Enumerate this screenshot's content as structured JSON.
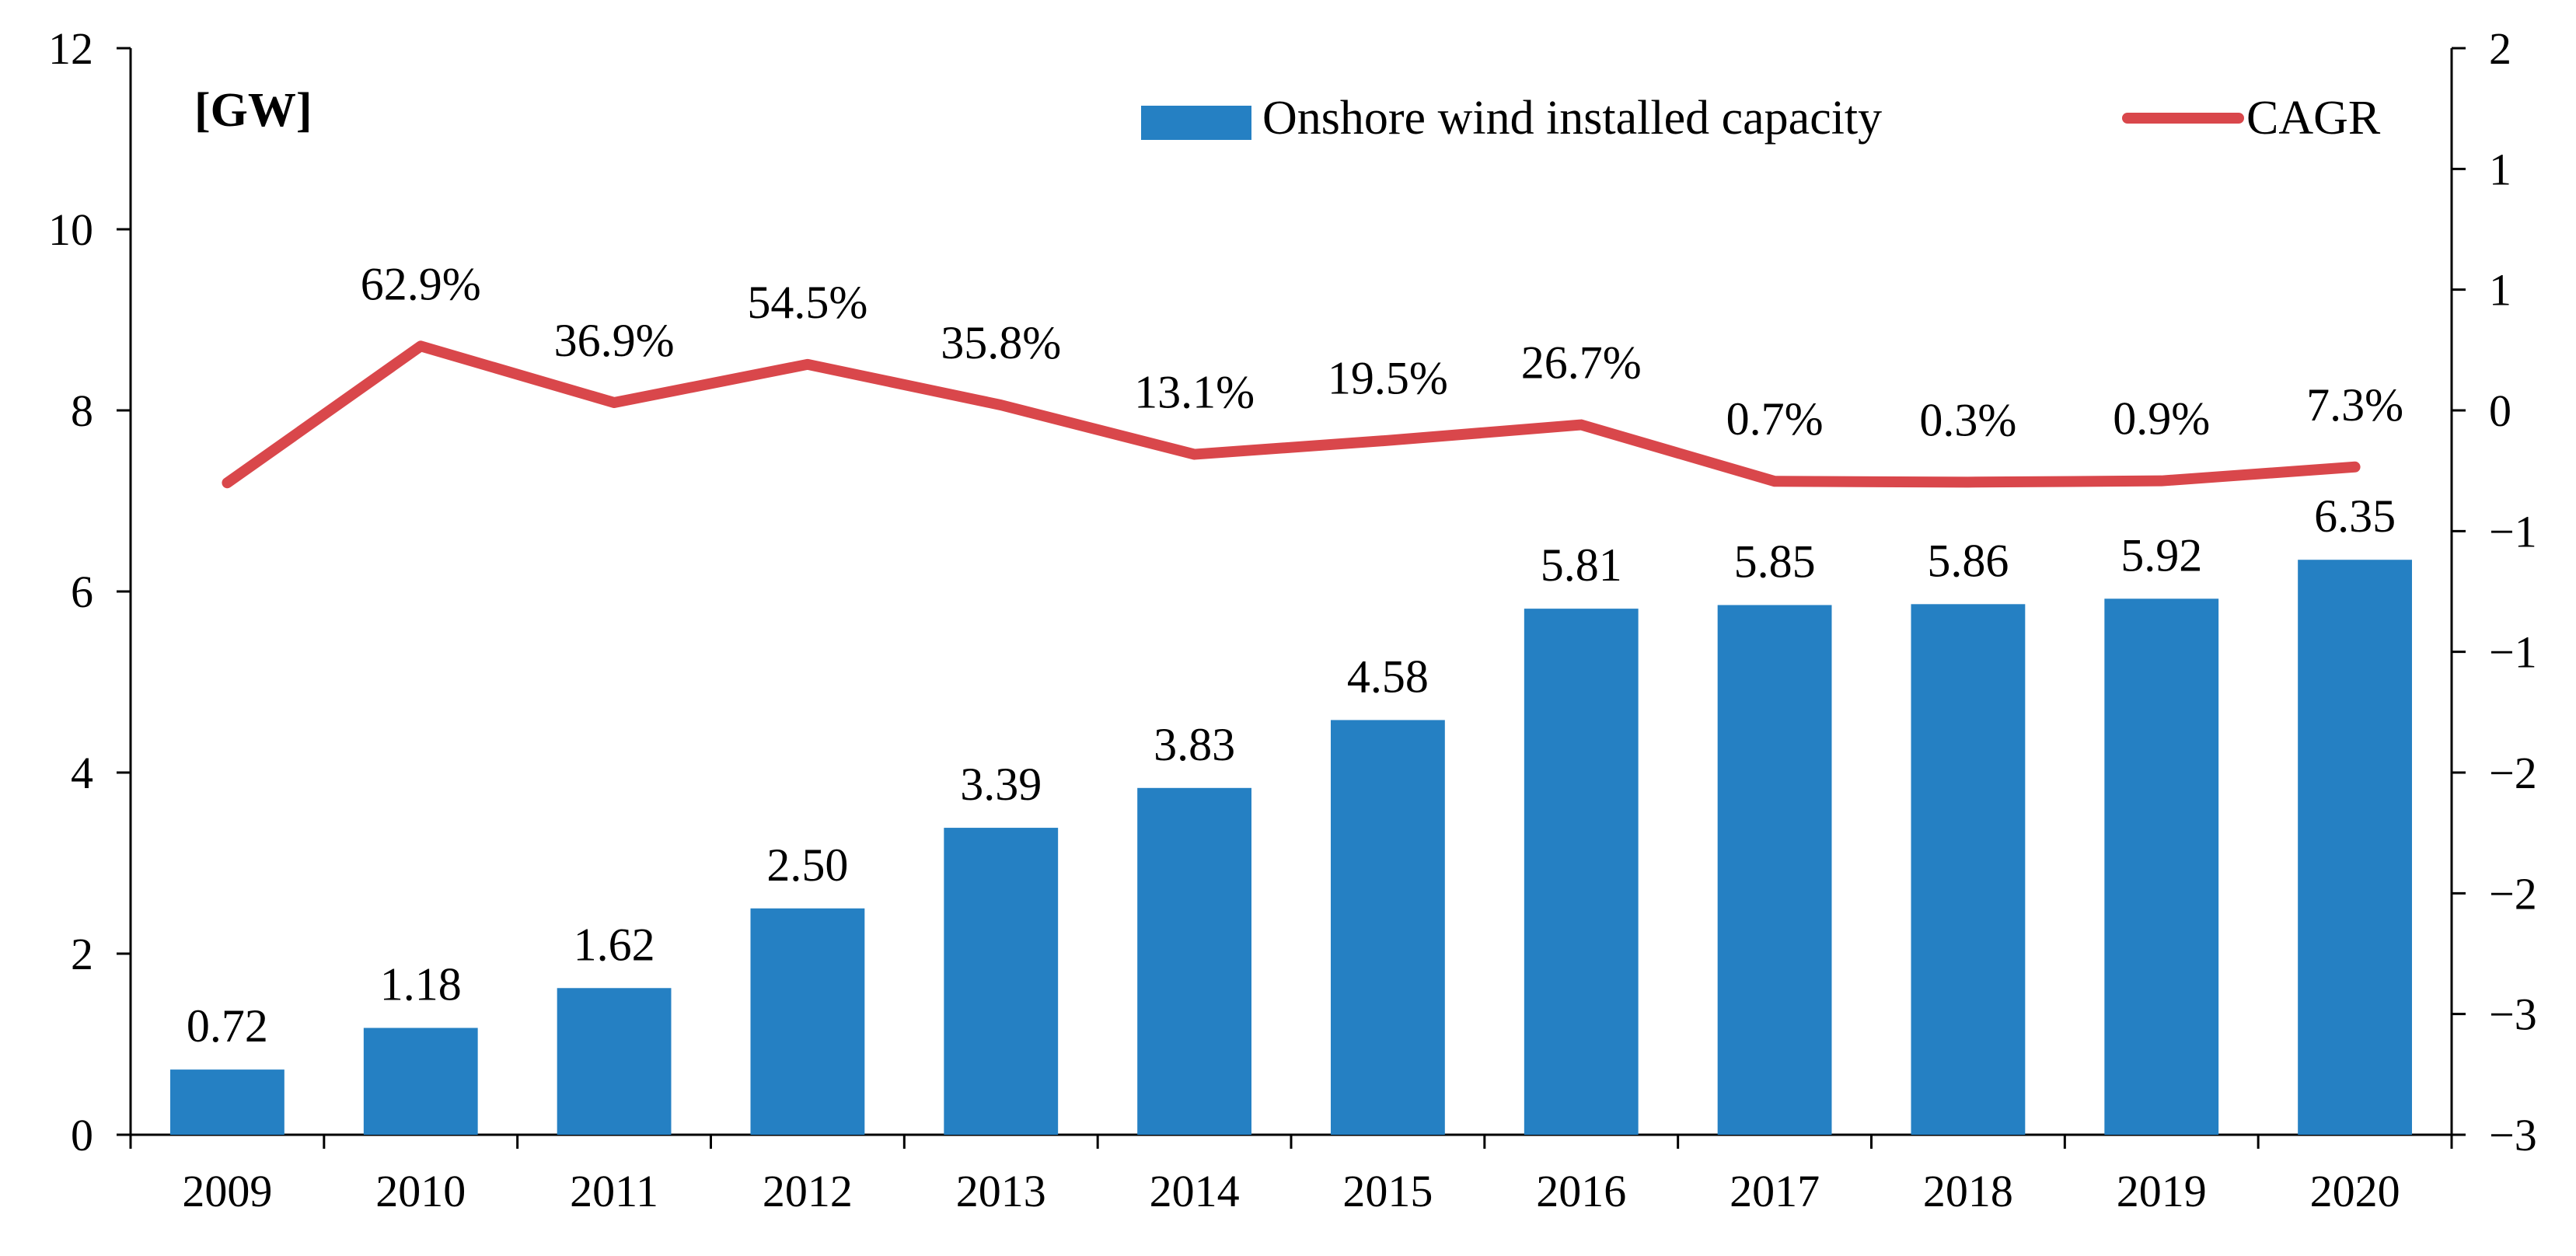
{
  "chart_data": {
    "type": "bar",
    "unit_label": "[GW]",
    "categories": [
      "2009",
      "2010",
      "2011",
      "2012",
      "2013",
      "2014",
      "2015",
      "2016",
      "2017",
      "2018",
      "2019",
      "2020"
    ],
    "series": [
      {
        "name": "Onshore wind installed capacity",
        "type": "bar",
        "axis": "left",
        "color": "#2580C3",
        "values": [
          0.72,
          1.18,
          1.62,
          2.5,
          3.39,
          3.83,
          4.58,
          5.81,
          5.85,
          5.86,
          5.92,
          6.35
        ],
        "labels": [
          "0.72",
          "1.18",
          "1.62",
          "2.50",
          "3.39",
          "3.83",
          "4.58",
          "5.81",
          "5.85",
          "5.86",
          "5.92",
          "6.35"
        ]
      },
      {
        "name": "CAGR",
        "type": "line",
        "axis": "right",
        "color": "#D9474B",
        "values": [
          0,
          0.629,
          0.369,
          0.545,
          0.358,
          0.131,
          0.195,
          0.267,
          0.007,
          0.003,
          0.009,
          0.073
        ],
        "labels": [
          "",
          "62.9%",
          "36.9%",
          "54.5%",
          "35.8%",
          "13.1%",
          "19.5%",
          "26.7%",
          "0.7%",
          "0.3%",
          "0.9%",
          "7.3%"
        ]
      }
    ],
    "y_left": {
      "min": 0,
      "max": 12,
      "ticks": [
        "0",
        "2",
        "4",
        "6",
        "8",
        "10",
        "12"
      ]
    },
    "y_right": {
      "min": -3,
      "max": 2,
      "ticks": [
        "−3",
        "−3",
        "−2",
        "−2",
        "−1",
        "−1",
        "0",
        "1",
        "1",
        "2"
      ]
    },
    "legend": {
      "position": "top-right",
      "entries": [
        "Onshore wind installed capacity",
        "CAGR"
      ]
    },
    "grid": false
  }
}
